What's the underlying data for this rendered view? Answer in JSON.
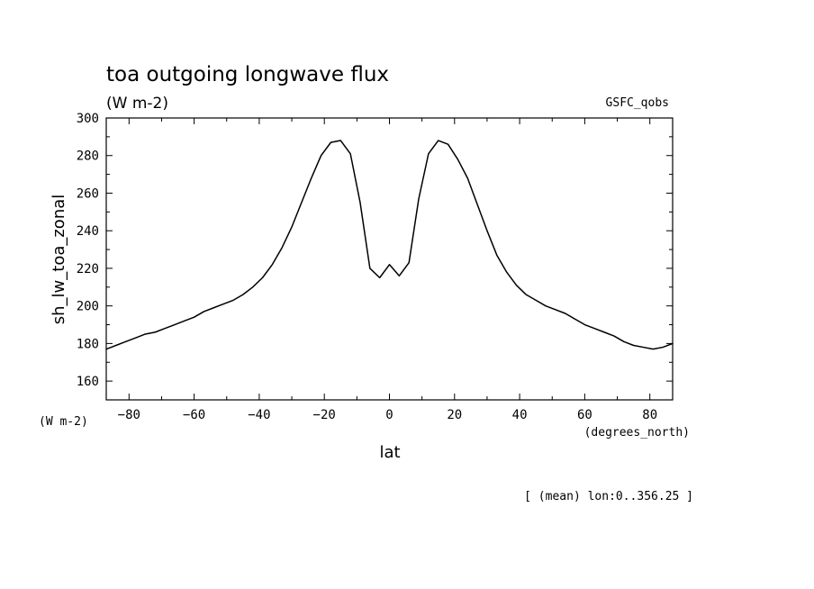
{
  "chart_data": {
    "type": "line",
    "title": "toa outgoing longwave flux",
    "subtitle_units": "(W m-2)",
    "dataset_label": "GSFC_qobs",
    "xlabel": "lat",
    "x_units": "(degrees_north)",
    "ylabel": "sh_lw_toa_zonal",
    "y_units": "(W m-2)",
    "footer_note": "[ (mean) lon:0..356.25 ]",
    "xlim": [
      -87,
      87
    ],
    "ylim": [
      150,
      300
    ],
    "x_ticks": [
      -80,
      -60,
      -40,
      -20,
      0,
      20,
      40,
      60,
      80
    ],
    "y_ticks": [
      160,
      180,
      200,
      220,
      240,
      260,
      280,
      300
    ],
    "grid": false,
    "series": [
      {
        "name": "",
        "x": [
          -87,
          -84,
          -81,
          -78,
          -75,
          -72,
          -69,
          -66,
          -63,
          -60,
          -57,
          -54,
          -51,
          -48,
          -45,
          -42,
          -39,
          -36,
          -33,
          -30,
          -27,
          -24,
          -21,
          -18,
          -15,
          -12,
          -9,
          -6,
          -3,
          0,
          3,
          6,
          9,
          12,
          15,
          18,
          21,
          24,
          27,
          30,
          33,
          36,
          39,
          42,
          45,
          48,
          51,
          54,
          57,
          60,
          63,
          66,
          69,
          72,
          75,
          78,
          81,
          84,
          87
        ],
        "y": [
          177,
          179,
          181,
          183,
          185,
          186,
          188,
          190,
          192,
          194,
          197,
          199,
          201,
          203,
          206,
          210,
          215,
          222,
          231,
          242,
          255,
          268,
          280,
          287,
          288,
          281,
          255,
          220,
          215,
          222,
          216,
          223,
          257,
          281,
          288,
          286,
          278,
          268,
          254,
          240,
          227,
          218,
          211,
          206,
          203,
          200,
          198,
          196,
          193,
          190,
          188,
          186,
          184,
          181,
          179,
          178,
          177,
          178,
          180
        ]
      }
    ]
  }
}
